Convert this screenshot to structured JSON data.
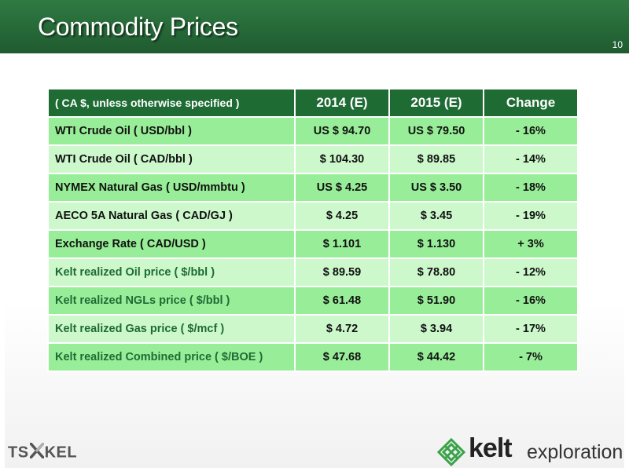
{
  "slide": {
    "title": "Commodity Prices",
    "page_number": "10"
  },
  "table": {
    "headers": [
      "( CA $, unless otherwise specified )",
      "2014 (E)",
      "2015 (E)",
      "Change"
    ],
    "rows": [
      {
        "label": "WTI Crude Oil ( USD/bbl )",
        "y2014": "US $ 94.70",
        "y2015": "US $ 79.50",
        "change": "- 16%"
      },
      {
        "label": "WTI Crude Oil ( CAD/bbl )",
        "y2014": "$ 104.30",
        "y2015": "$ 89.85",
        "change": "- 14%"
      },
      {
        "label": "NYMEX Natural Gas ( USD/mmbtu )",
        "y2014": "US $ 4.25",
        "y2015": "US $ 3.50",
        "change": "- 18%"
      },
      {
        "label": "AECO 5A Natural Gas ( CAD/GJ )",
        "y2014": "$ 4.25",
        "y2015": "$ 3.45",
        "change": "- 19%"
      },
      {
        "label": "Exchange Rate ( CAD/USD )",
        "y2014": "$ 1.101",
        "y2015": "$ 1.130",
        "change": "+ 3%"
      },
      {
        "label": "Kelt realized Oil price ( $/bbl )",
        "y2014": "$ 89.59",
        "y2015": "$ 78.80",
        "change": "- 12%"
      },
      {
        "label": "Kelt realized NGLs price ( $/bbl )",
        "y2014": "$ 61.48",
        "y2015": "$ 51.90",
        "change": "- 16%"
      },
      {
        "label": "Kelt realized Gas price ( $/mcf )",
        "y2014": "$ 4.72",
        "y2015": "$ 3.94",
        "change": "- 17%"
      },
      {
        "label": "Kelt realized Combined price ( $/BOE )",
        "y2014": "$ 47.68",
        "y2015": "$ 44.42",
        "change": "- 7%"
      }
    ]
  },
  "footer": {
    "exchange_left": "TS",
    "exchange_right": "KEL",
    "company_name": "kelt",
    "company_suffix": "exploration"
  },
  "colors": {
    "header_green": "#1f6b34",
    "row_dark": "#98ee98",
    "row_light": "#ccf8cc",
    "kelt_label_green": "#1f6b34",
    "logo_green": "#3aa34a"
  },
  "icons": {
    "tsx_mark": "tsx-x-icon",
    "kelt_logo": "celtic-knot-icon"
  }
}
